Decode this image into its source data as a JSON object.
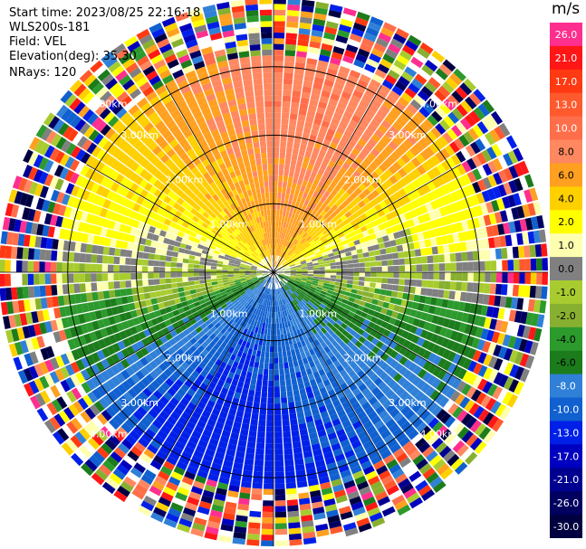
{
  "header": {
    "start_time": "Start time: 2023/08/25 22:16:18",
    "instrument": "WLS200s-181",
    "field": "Field: VEL",
    "elevation": "Elevation(deg): 35.30",
    "nrays": "NRays: 120"
  },
  "colorbar": {
    "unit": "m/s",
    "levels": [
      {
        "label": "26.0",
        "color": "#ff2f8f"
      },
      {
        "label": "21.0",
        "color": "#ff1616"
      },
      {
        "label": "17.0",
        "color": "#ff3a12"
      },
      {
        "label": "13.0",
        "color": "#ff5a2e"
      },
      {
        "label": "10.0",
        "color": "#ff6e4a"
      },
      {
        "label": "8.0",
        "color": "#ff8860"
      },
      {
        "label": "6.0",
        "color": "#ffa020"
      },
      {
        "label": "4.0",
        "color": "#ffd000"
      },
      {
        "label": "2.0",
        "color": "#ffff00"
      },
      {
        "label": "1.0",
        "color": "#ffffb0"
      },
      {
        "label": "0.0",
        "color": "#808080"
      },
      {
        "label": "-1.0",
        "color": "#a8cc30"
      },
      {
        "label": "-2.0",
        "color": "#88b030"
      },
      {
        "label": "-4.0",
        "color": "#2c9a2c"
      },
      {
        "label": "-6.0",
        "color": "#1c7c1c"
      },
      {
        "label": "-8.0",
        "color": "#3080d8"
      },
      {
        "label": "-10.0",
        "color": "#1060d0"
      },
      {
        "label": "-13.0",
        "color": "#0020e8"
      },
      {
        "label": "-17.0",
        "color": "#0000c0"
      },
      {
        "label": "-21.0",
        "color": "#000090"
      },
      {
        "label": "-26.0",
        "color": "#000060"
      },
      {
        "label": "-30.0",
        "color": "#000040"
      }
    ]
  },
  "chart_data": {
    "type": "heatmap",
    "projection": "polar PPI",
    "field": "VEL",
    "unit": "m/s",
    "n_rays": 120,
    "range_rings_km": [
      1.0,
      2.0,
      3.0
    ],
    "range_labels": [
      "1.00km",
      "2.00km",
      "3.00km"
    ],
    "max_range_km": 4.0,
    "sectors": [
      {
        "azimuth_range_deg": [
          300,
          60
        ],
        "velocity_ms": 10.0,
        "note": "northern half, positive velocities"
      },
      {
        "azimuth_range_deg": [
          120,
          240
        ],
        "velocity_ms": -10.0,
        "note": "southern half, negative velocities"
      },
      {
        "azimuth_range_deg": [
          60,
          120
        ],
        "velocity_ms": -2.0
      },
      {
        "azimuth_range_deg": [
          240,
          300
        ],
        "velocity_ms": -2.0
      }
    ],
    "noise_beyond_km": 3.15
  }
}
